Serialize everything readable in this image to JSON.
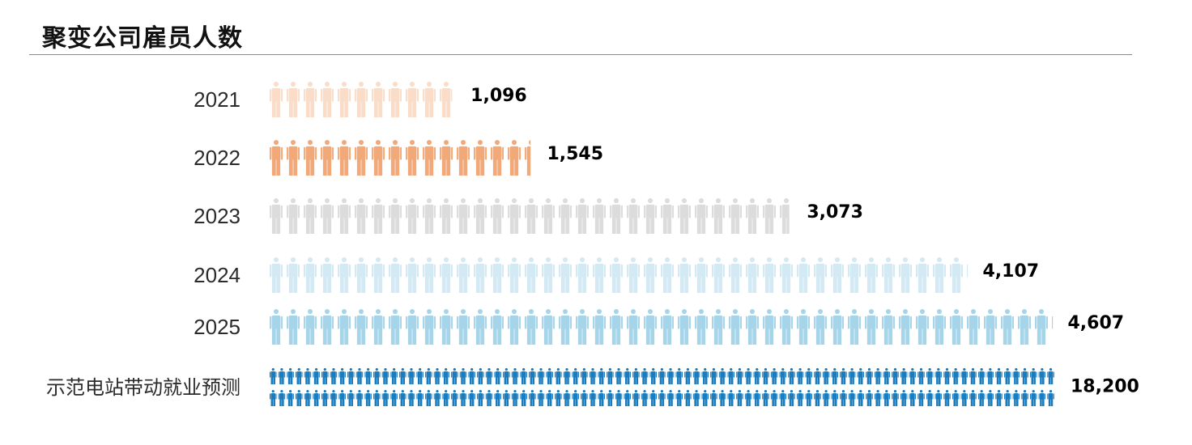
{
  "title": "聚变公司雇员人数",
  "chart_data": {
    "type": "bar",
    "style": "pictogram",
    "title": "聚变公司雇员人数",
    "unit_per_icon": 100,
    "categories": [
      "2021",
      "2022",
      "2023",
      "2024",
      "2025",
      "示范电站带动就业预测"
    ],
    "values": [
      1096,
      1545,
      3073,
      4107,
      4607,
      18200
    ],
    "value_labels": [
      "1,096",
      "1,545",
      "3,073",
      "4,107",
      "4,607",
      "18,200"
    ],
    "colors": [
      "#f9ddc9",
      "#f2a97a",
      "#dcdcdc",
      "#d3e9f4",
      "#a6d5ea",
      "#1a7cbd"
    ],
    "xlabel": "",
    "ylabel": ""
  }
}
